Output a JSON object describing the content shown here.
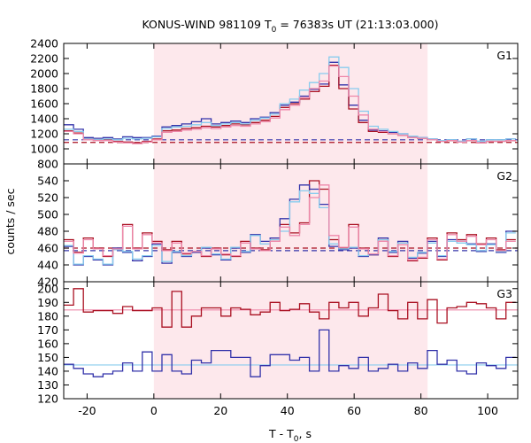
{
  "chart_data": {
    "type": "line",
    "title": "KONUS-WIND 981109 T",
    "title_sub": "0",
    "title_rest": " = 76383s UT (21:13:03.000)",
    "xlabel_pre": "T - T",
    "xlabel_sub": "0",
    "xlabel_post": ", s",
    "ylabel": "counts / sec",
    "xlim": [
      -27,
      109
    ],
    "x_ticks": [
      -20,
      0,
      20,
      40,
      60,
      80,
      100
    ],
    "bin_start": -27,
    "bin_width": 2.944,
    "highlight_interval": [
      0,
      82
    ],
    "colors": {
      "highlight": "#fde8ec",
      "series_a": "#3333aa",
      "series_b": "#aa1122",
      "series_c": "#88ccee",
      "series_d": "#ee88aa"
    },
    "panels": [
      {
        "name": "G1",
        "ylim": [
          800,
          2400
        ],
        "y_ticks": [
          800,
          1000,
          1200,
          1400,
          1600,
          1800,
          2000,
          2200,
          2400
        ],
        "backgrounds": [
          {
            "color_key": "series_a",
            "value": 1120,
            "style": "dashed"
          },
          {
            "color_key": "series_b",
            "value": 1085,
            "style": "dashed"
          }
        ],
        "series": [
          {
            "color_key": "series_a",
            "values": [
              1320,
              1260,
              1150,
              1140,
              1150,
              1130,
              1160,
              1150,
              1150,
              1170,
              1290,
              1310,
              1330,
              1360,
              1400,
              1330,
              1350,
              1370,
              1350,
              1400,
              1420,
              1480,
              1580,
              1620,
              1700,
              1790,
              1860,
              2150,
              1850,
              1580,
              1380,
              1250,
              1240,
              1220,
              1200,
              1170,
              1150,
              1130,
              1110,
              1120,
              1100,
              1130,
              1100,
              1120,
              1120,
              1130
            ]
          },
          {
            "color_key": "series_b",
            "values": [
              1240,
              1210,
              1130,
              1120,
              1120,
              1100,
              1090,
              1080,
              1100,
              1130,
              1240,
              1250,
              1270,
              1280,
              1300,
              1290,
              1310,
              1330,
              1320,
              1350,
              1380,
              1430,
              1550,
              1600,
              1660,
              1760,
              1830,
              2110,
              1800,
              1530,
              1350,
              1230,
              1220,
              1200,
              1180,
              1150,
              1140,
              1120,
              1100,
              1110,
              1090,
              1110,
              1080,
              1100,
              1100,
              1110
            ]
          },
          {
            "color_key": "series_c",
            "values": [
              1260,
              1230,
              1130,
              1120,
              1130,
              1120,
              1140,
              1130,
              1140,
              1160,
              1270,
              1290,
              1300,
              1320,
              1350,
              1310,
              1330,
              1350,
              1330,
              1380,
              1410,
              1460,
              1600,
              1660,
              1780,
              1880,
              2000,
              2220,
              2080,
              1800,
              1500,
              1300,
              1260,
              1230,
              1200,
              1170,
              1150,
              1130,
              1110,
              1120,
              1100,
              1130,
              1100,
              1120,
              1120,
              1130
            ]
          },
          {
            "color_key": "series_d",
            "values": [
              1230,
              1200,
              1120,
              1110,
              1110,
              1090,
              1080,
              1070,
              1090,
              1120,
              1220,
              1230,
              1250,
              1260,
              1280,
              1270,
              1290,
              1310,
              1300,
              1330,
              1360,
              1410,
              1520,
              1580,
              1680,
              1800,
              1900,
              2100,
              1960,
              1700,
              1450,
              1260,
              1230,
              1200,
              1180,
              1150,
              1140,
              1120,
              1100,
              1110,
              1090,
              1110,
              1080,
              1100,
              1100,
              1110
            ]
          }
        ]
      },
      {
        "name": "G2",
        "ylim": [
          420,
          560
        ],
        "y_ticks": [
          420,
          440,
          460,
          480,
          500,
          520,
          540
        ],
        "backgrounds": [
          {
            "color_key": "series_b",
            "value": 460,
            "style": "dashed"
          },
          {
            "color_key": "series_a",
            "value": 457,
            "style": "dashed"
          }
        ],
        "series": [
          {
            "color_key": "series_b",
            "values": [
              470,
              455,
              472,
              460,
              450,
              460,
              488,
              460,
              478,
              468,
              458,
              468,
              453,
              455,
              450,
              460,
              452,
              450,
              468,
              460,
              458,
              470,
              488,
              478,
              490,
              540,
              530,
              470,
              460,
              488,
              460,
              452,
              470,
              450,
              466,
              445,
              448,
              472,
              446,
              478,
              470,
              476,
              465,
              472,
              458,
              470
            ]
          },
          {
            "color_key": "series_a",
            "values": [
              462,
              440,
              450,
              446,
              440,
              460,
              455,
              445,
              450,
              465,
              442,
              455,
              450,
              455,
              460,
              452,
              446,
              460,
              455,
              476,
              468,
              472,
              495,
              518,
              535,
              530,
              512,
              462,
              458,
              460,
              450,
              452,
              472,
              455,
              468,
              448,
              454,
              468,
              450,
              470,
              468,
              465,
              456,
              465,
              455,
              480
            ]
          },
          {
            "color_key": "series_c",
            "values": [
              463,
              441,
              451,
              447,
              441,
              458,
              456,
              447,
              451,
              463,
              444,
              456,
              451,
              456,
              461,
              453,
              447,
              461,
              456,
              475,
              465,
              470,
              480,
              515,
              528,
              525,
              508,
              465,
              459,
              461,
              451,
              453,
              470,
              456,
              466,
              449,
              455,
              466,
              451,
              468,
              466,
              464,
              457,
              464,
              456,
              478
            ]
          },
          {
            "color_key": "series_d",
            "values": [
              468,
              454,
              470,
              459,
              451,
              459,
              486,
              459,
              476,
              466,
              457,
              466,
              454,
              456,
              451,
              459,
              453,
              451,
              466,
              459,
              457,
              468,
              485,
              475,
              488,
              520,
              535,
              475,
              461,
              485,
              459,
              453,
              468,
              451,
              464,
              446,
              449,
              470,
              447,
              476,
              468,
              474,
              464,
              470,
              457,
              468
            ]
          }
        ]
      },
      {
        "name": "G3",
        "ylim": [
          120,
          205
        ],
        "y_ticks": [
          120,
          130,
          140,
          150,
          160,
          170,
          180,
          190,
          200
        ],
        "backgrounds": [
          {
            "color_key": "series_d",
            "value": 184.5,
            "style": "solid"
          },
          {
            "color_key": "series_c",
            "value": 144.5,
            "style": "solid"
          }
        ],
        "series": [
          {
            "color_key": "series_b",
            "values": [
              188,
              200,
              183,
              184,
              184,
              182,
              187,
              184,
              184,
              186,
              172,
              198,
              172,
              180,
              186,
              186,
              180,
              186,
              185,
              181,
              183,
              190,
              184,
              185,
              189,
              183,
              178,
              190,
              186,
              190,
              180,
              186,
              196,
              184,
              178,
              190,
              178,
              192,
              175,
              186,
              187,
              190,
              189,
              186,
              178,
              190
            ]
          },
          {
            "color_key": "series_a",
            "values": [
              145,
              142,
              138,
              136,
              138,
              140,
              146,
              140,
              154,
              140,
              152,
              140,
              138,
              148,
              146,
              155,
              155,
              150,
              150,
              136,
              144,
              152,
              152,
              148,
              150,
              140,
              170,
              140,
              144,
              142,
              150,
              140,
              142,
              145,
              140,
              146,
              142,
              155,
              145,
              148,
              140,
              138,
              146,
              144,
              142,
              150
            ]
          }
        ]
      }
    ]
  }
}
